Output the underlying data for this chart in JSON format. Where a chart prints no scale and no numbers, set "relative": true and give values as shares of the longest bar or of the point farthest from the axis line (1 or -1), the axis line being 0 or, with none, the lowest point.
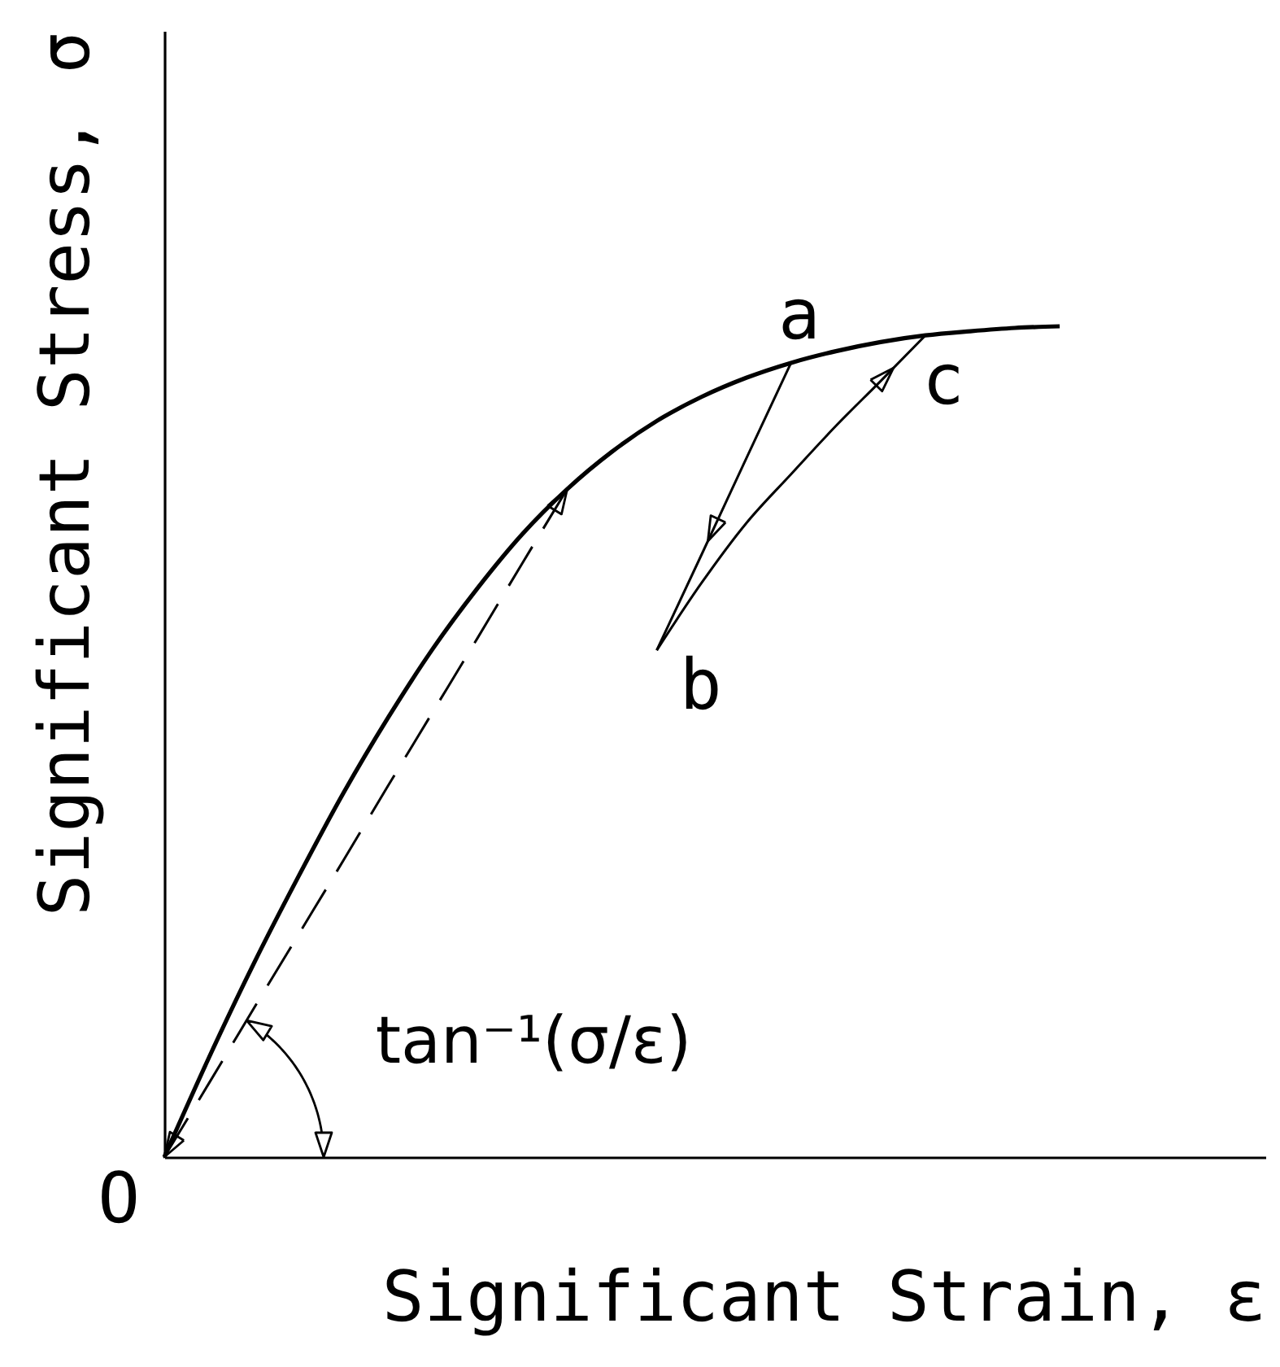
{
  "chart_data": {
    "type": "line",
    "relative": true,
    "xlabel": "Significant Strain, ε",
    "ylabel": "Significant Stress, σ",
    "line_style": "solid",
    "categories": [
      null,
      null,
      null,
      null,
      null,
      null,
      null,
      null,
      null,
      null,
      null,
      null,
      null,
      null,
      null,
      null,
      null,
      null,
      null,
      null,
      null
    ],
    "series": [
      {
        "color": "#000000",
        "values": [
          0,
          0.12,
          0.233,
          0.338,
          0.438,
          0.529,
          0.612,
          0.685,
          0.75,
          0.804,
          0.849,
          0.886,
          0.915,
          0.938,
          0.956,
          0.97,
          0.981,
          0.989,
          0.994,
          0.998,
          1
        ]
      },
      {
        "color": "#000000",
        "values": [
          null,
          null,
          null,
          null,
          null,
          null,
          null,
          null,
          null,
          null,
          null,
          0.61,
          0.725,
          0.841,
          0.956,
          null,
          null,
          null,
          null,
          null,
          null
        ]
      },
      {
        "color": "#000000",
        "values": [
          null,
          null,
          null,
          null,
          null,
          null,
          null,
          null,
          null,
          null,
          null,
          0.61,
          0.691,
          0.763,
          0.822,
          0.88,
          0.934,
          0.989,
          null,
          null,
          null
        ]
      },
      {
        "color": "#000000",
        "line_style": "dashed",
        "values": [
          0,
          0.089,
          0.179,
          0.268,
          0.357,
          0.447,
          0.536,
          0.625,
          0.715,
          0.804,
          null,
          null,
          null,
          null,
          null,
          null,
          null,
          null,
          null,
          null,
          null
        ]
      }
    ],
    "annotations": [
      "O",
      "a",
      "b",
      "c",
      "tan⁻¹(σ/ε)"
    ]
  }
}
